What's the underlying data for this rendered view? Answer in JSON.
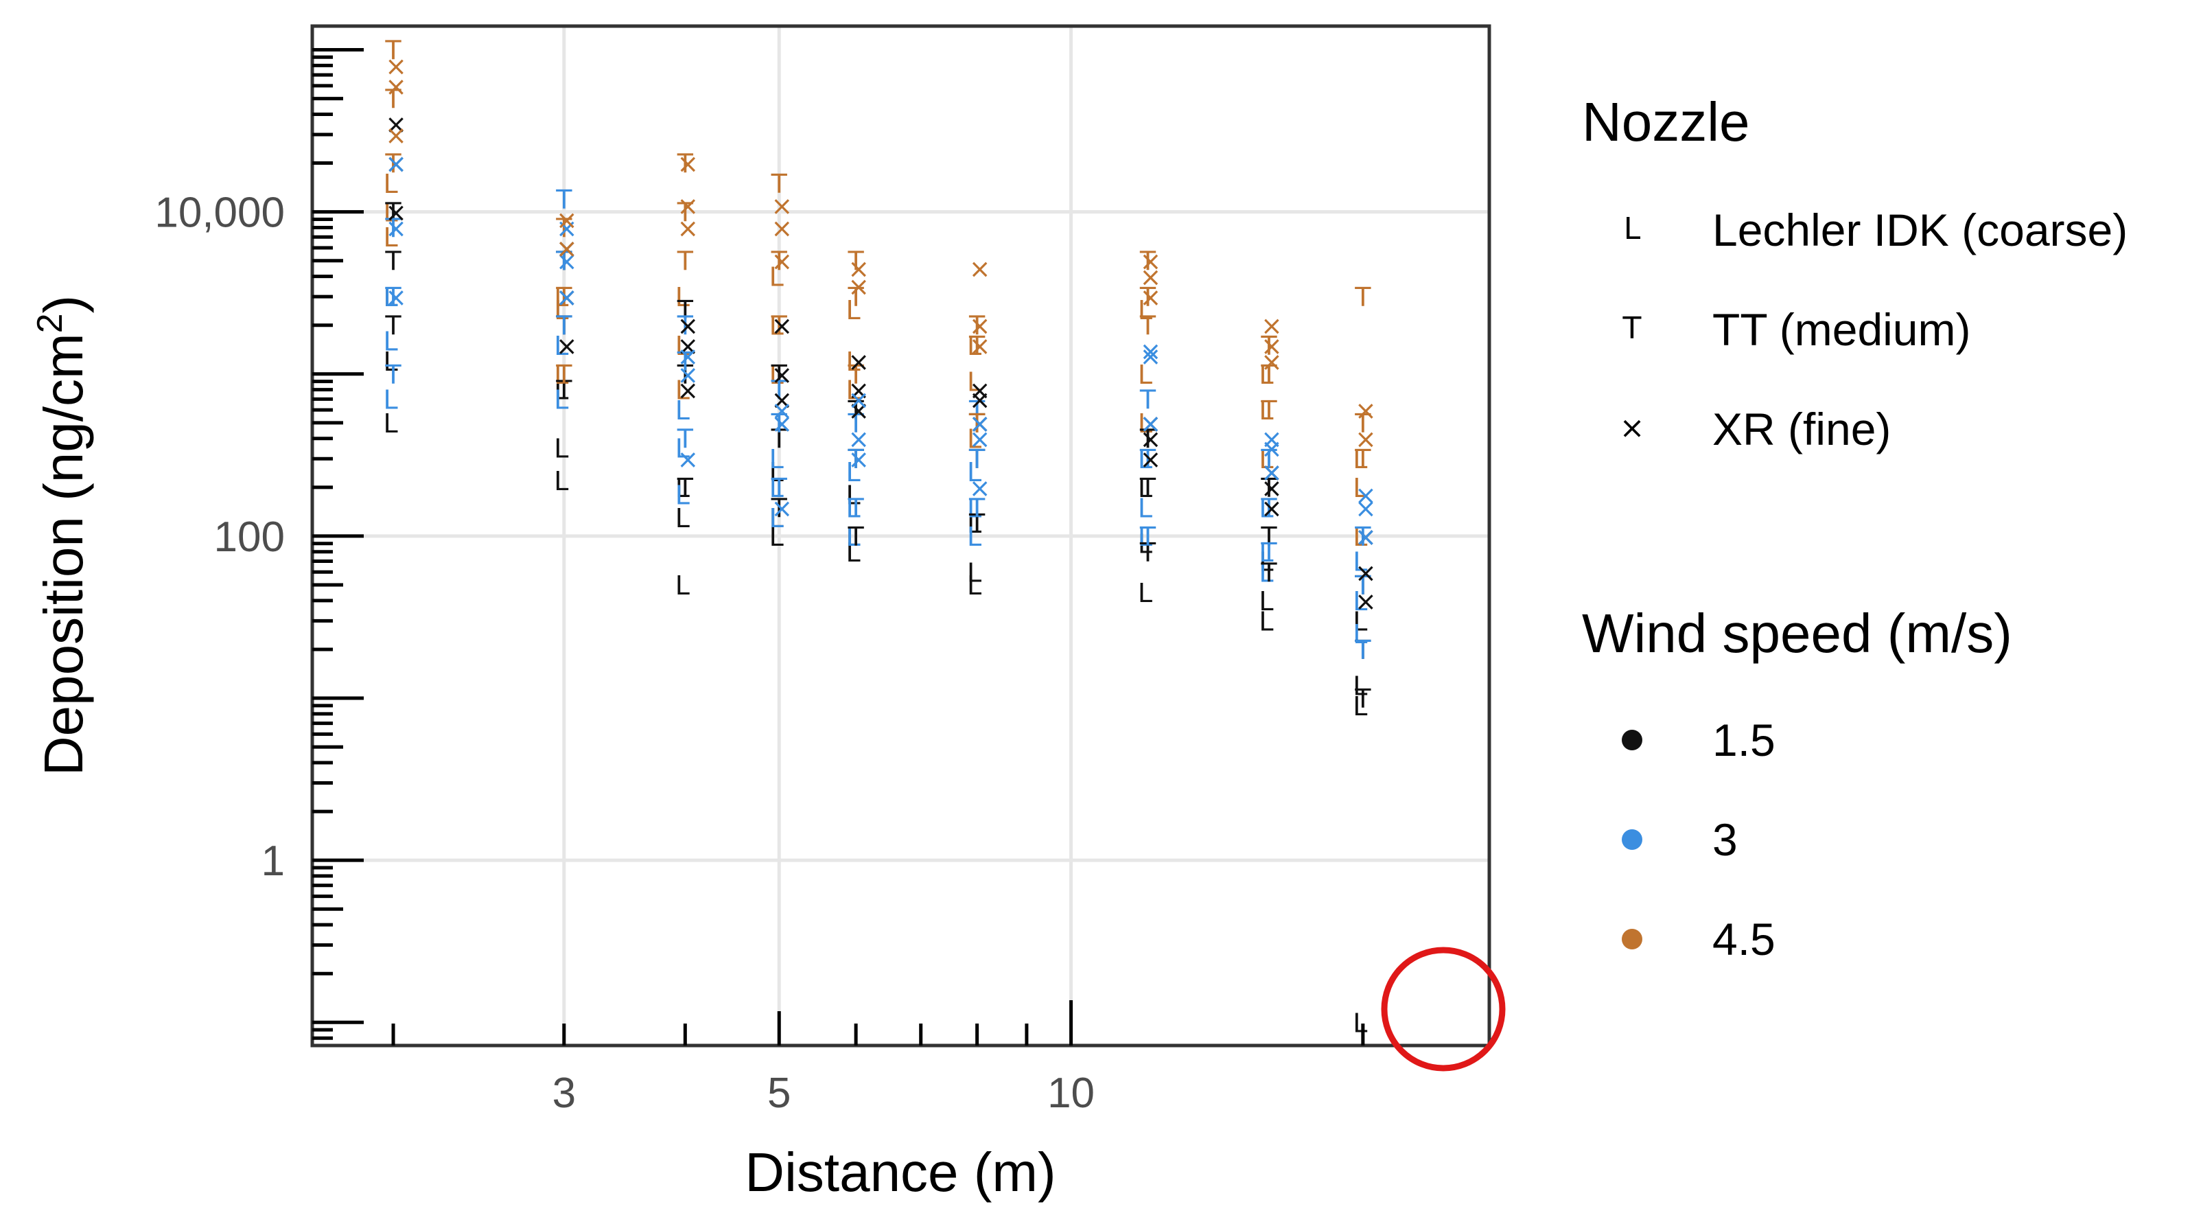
{
  "chart_data": {
    "type": "scatter",
    "xlabel": "Distance (m)",
    "ylabel_main": "Deposition (ng/cm",
    "ylabel_sup": "2",
    "ylabel_end": ")",
    "x_scale": "log",
    "y_scale": "log",
    "xlim": [
      1.65,
      27
    ],
    "ylim": [
      0.072,
      140000
    ],
    "x_ticks": [
      {
        "value": 3,
        "label": "3"
      },
      {
        "value": 5,
        "label": "5"
      },
      {
        "value": 10,
        "label": "10"
      }
    ],
    "y_ticks": [
      {
        "value": 1,
        "label": "1"
      },
      {
        "value": 100,
        "label": "100"
      },
      {
        "value": 10000,
        "label": "10,000"
      }
    ],
    "grid": true,
    "legend_position": "right",
    "legend": {
      "shape_title": "Nozzle",
      "shapes": [
        {
          "symbol": "L",
          "label": "Lechler IDK  (coarse)"
        },
        {
          "symbol": "T",
          "label": "TT (medium)"
        },
        {
          "symbol": "×",
          "label": "XR (fine)"
        }
      ],
      "color_title": "Wind speed (m/s)",
      "colors": [
        {
          "label": "1.5",
          "color": "#111111"
        },
        {
          "label": "3",
          "color": "#3b8ee0"
        },
        {
          "label": "4.5",
          "color": "#c0742f"
        }
      ]
    },
    "distances": [
      2,
      3,
      4,
      5,
      6,
      8,
      12,
      16,
      20
    ],
    "series": [
      {
        "nozzle": "Lechler IDK  (coarse)",
        "symbol": "L",
        "wind": "1.5",
        "color": "#111111",
        "points": [
          [
            2,
            500
          ],
          [
            2,
            1200
          ],
          [
            2,
            3000
          ],
          [
            3,
            220
          ],
          [
            3,
            350
          ],
          [
            3,
            800
          ],
          [
            4,
            50
          ],
          [
            4,
            130
          ],
          [
            4,
            200
          ],
          [
            5,
            100
          ],
          [
            5,
            130
          ],
          [
            5,
            250
          ],
          [
            6,
            80
          ],
          [
            6,
            100
          ],
          [
            6,
            180
          ],
          [
            8,
            50
          ],
          [
            8,
            60
          ],
          [
            8,
            120
          ],
          [
            12,
            45
          ],
          [
            12,
            90
          ],
          [
            12,
            200
          ],
          [
            16,
            30
          ],
          [
            16,
            40
          ],
          [
            16,
            70
          ],
          [
            20,
            9
          ],
          [
            20,
            12
          ],
          [
            20,
            30
          ],
          [
            20,
            0.1
          ]
        ]
      },
      {
        "nozzle": "Lechler IDK  (coarse)",
        "symbol": "L",
        "wind": "3",
        "color": "#3b8ee0",
        "points": [
          [
            2,
            700
          ],
          [
            2,
            1600
          ],
          [
            2,
            3000
          ],
          [
            3,
            700
          ],
          [
            3,
            1500
          ],
          [
            3,
            2500
          ],
          [
            4,
            180
          ],
          [
            4,
            350
          ],
          [
            4,
            600
          ],
          [
            5,
            130
          ],
          [
            5,
            200
          ],
          [
            5,
            300
          ],
          [
            6,
            100
          ],
          [
            6,
            150
          ],
          [
            6,
            250
          ],
          [
            8,
            100
          ],
          [
            8,
            150
          ],
          [
            8,
            250
          ],
          [
            12,
            100
          ],
          [
            12,
            150
          ],
          [
            12,
            300
          ],
          [
            16,
            60
          ],
          [
            16,
            80
          ],
          [
            16,
            150
          ],
          [
            20,
            25
          ],
          [
            20,
            40
          ],
          [
            20,
            70
          ]
        ]
      },
      {
        "nozzle": "Lechler IDK  (coarse)",
        "symbol": "L",
        "wind": "4.5",
        "color": "#c0742f",
        "points": [
          [
            2,
            7000
          ],
          [
            2,
            10000
          ],
          [
            2,
            15000
          ],
          [
            3,
            1000
          ],
          [
            3,
            2500
          ],
          [
            3,
            3000
          ],
          [
            4,
            800
          ],
          [
            4,
            1500
          ],
          [
            4,
            3000
          ],
          [
            5,
            1000
          ],
          [
            5,
            2000
          ],
          [
            5,
            4000
          ],
          [
            6,
            800
          ],
          [
            6,
            1200
          ],
          [
            6,
            2500
          ],
          [
            8,
            400
          ],
          [
            8,
            900
          ],
          [
            8,
            1500
          ],
          [
            12,
            500
          ],
          [
            12,
            1000
          ],
          [
            12,
            2500
          ],
          [
            16,
            300
          ],
          [
            16,
            600
          ],
          [
            16,
            1000
          ],
          [
            20,
            100
          ],
          [
            20,
            200
          ],
          [
            20,
            300
          ]
        ]
      },
      {
        "nozzle": "TT (medium)",
        "symbol": "T",
        "wind": "1.5",
        "color": "#111111",
        "points": [
          [
            2,
            2000
          ],
          [
            2,
            5000
          ],
          [
            2,
            10000
          ],
          [
            3,
            800
          ],
          [
            3,
            2000
          ],
          [
            3,
            5000
          ],
          [
            4,
            200
          ],
          [
            4,
            1000
          ],
          [
            4,
            2500
          ],
          [
            5,
            150
          ],
          [
            5,
            400
          ],
          [
            5,
            1000
          ],
          [
            6,
            100
          ],
          [
            6,
            300
          ],
          [
            6,
            600
          ],
          [
            8,
            120
          ],
          [
            8,
            300
          ],
          [
            8,
            500
          ],
          [
            12,
            80
          ],
          [
            12,
            200
          ],
          [
            12,
            400
          ],
          [
            16,
            60
          ],
          [
            16,
            100
          ],
          [
            16,
            200
          ],
          [
            20,
            10
          ],
          [
            20,
            20
          ],
          [
            20,
            50
          ]
        ]
      },
      {
        "nozzle": "TT (medium)",
        "symbol": "T",
        "wind": "3",
        "color": "#3b8ee0",
        "points": [
          [
            2,
            1000
          ],
          [
            2,
            3000
          ],
          [
            2,
            8000
          ],
          [
            3,
            2000
          ],
          [
            3,
            5000
          ],
          [
            3,
            12000
          ],
          [
            4,
            400
          ],
          [
            4,
            1200
          ],
          [
            4,
            2000
          ],
          [
            5,
            200
          ],
          [
            5,
            500
          ],
          [
            5,
            800
          ],
          [
            6,
            150
          ],
          [
            6,
            300
          ],
          [
            6,
            500
          ],
          [
            8,
            150
          ],
          [
            8,
            300
          ],
          [
            8,
            600
          ],
          [
            12,
            100
          ],
          [
            12,
            300
          ],
          [
            12,
            700
          ],
          [
            16,
            80
          ],
          [
            16,
            150
          ],
          [
            16,
            300
          ],
          [
            20,
            20
          ],
          [
            20,
            50
          ],
          [
            20,
            100
          ]
        ]
      },
      {
        "nozzle": "TT (medium)",
        "symbol": "T",
        "wind": "4.5",
        "color": "#c0742f",
        "points": [
          [
            2,
            20000
          ],
          [
            2,
            50000
          ],
          [
            2,
            100000
          ],
          [
            3,
            1000
          ],
          [
            3,
            3000
          ],
          [
            3,
            8000
          ],
          [
            4,
            5000
          ],
          [
            4,
            10000
          ],
          [
            4,
            20000
          ],
          [
            5,
            2000
          ],
          [
            5,
            5000
          ],
          [
            5,
            15000
          ],
          [
            6,
            1000
          ],
          [
            6,
            3000
          ],
          [
            6,
            5000
          ],
          [
            8,
            500
          ],
          [
            8,
            1500
          ],
          [
            8,
            2000
          ],
          [
            12,
            2000
          ],
          [
            12,
            3000
          ],
          [
            12,
            5000
          ],
          [
            16,
            600
          ],
          [
            16,
            1000
          ],
          [
            16,
            1500
          ],
          [
            20,
            300
          ],
          [
            20,
            500
          ],
          [
            20,
            3000
          ]
        ]
      },
      {
        "nozzle": "XR (fine)",
        "symbol": "×",
        "wind": "1.5",
        "color": "#111111",
        "points": [
          [
            2,
            10000
          ],
          [
            2,
            20000
          ],
          [
            2,
            35000
          ],
          [
            3,
            1500
          ],
          [
            3,
            3000
          ],
          [
            3,
            6000
          ],
          [
            4,
            800
          ],
          [
            4,
            1500
          ],
          [
            4,
            2000
          ],
          [
            5,
            700
          ],
          [
            5,
            1000
          ],
          [
            5,
            2000
          ],
          [
            6,
            600
          ],
          [
            6,
            800
          ],
          [
            6,
            1200
          ],
          [
            8,
            500
          ],
          [
            8,
            700
          ],
          [
            8,
            800
          ],
          [
            12,
            300
          ],
          [
            12,
            400
          ],
          [
            12,
            500
          ],
          [
            16,
            150
          ],
          [
            16,
            200
          ],
          [
            16,
            250
          ],
          [
            20,
            40
          ],
          [
            20,
            60
          ],
          [
            20,
            100
          ]
        ]
      },
      {
        "nozzle": "XR (fine)",
        "symbol": "×",
        "wind": "3",
        "color": "#3b8ee0",
        "points": [
          [
            2,
            3000
          ],
          [
            2,
            8000
          ],
          [
            2,
            20000
          ],
          [
            3,
            3000
          ],
          [
            3,
            5000
          ],
          [
            3,
            8000
          ],
          [
            4,
            300
          ],
          [
            4,
            1000
          ],
          [
            4,
            1300
          ],
          [
            5,
            150
          ],
          [
            5,
            500
          ],
          [
            5,
            600
          ],
          [
            6,
            300
          ],
          [
            6,
            400
          ],
          [
            6,
            700
          ],
          [
            8,
            200
          ],
          [
            8,
            400
          ],
          [
            8,
            500
          ],
          [
            12,
            500
          ],
          [
            12,
            1300
          ],
          [
            12,
            1400
          ],
          [
            16,
            250
          ],
          [
            16,
            350
          ],
          [
            16,
            400
          ],
          [
            20,
            100
          ],
          [
            20,
            150
          ],
          [
            20,
            180
          ]
        ]
      },
      {
        "nozzle": "XR (fine)",
        "symbol": "×",
        "wind": "4.5",
        "color": "#c0742f",
        "points": [
          [
            2,
            30000
          ],
          [
            2,
            60000
          ],
          [
            2,
            80000
          ],
          [
            3,
            6000
          ],
          [
            3,
            9000
          ],
          [
            4,
            8000
          ],
          [
            4,
            11000
          ],
          [
            4,
            20000
          ],
          [
            5,
            5000
          ],
          [
            5,
            8000
          ],
          [
            5,
            11000
          ],
          [
            6,
            3500
          ],
          [
            6,
            4500
          ],
          [
            8,
            1500
          ],
          [
            8,
            2000
          ],
          [
            8,
            4500
          ],
          [
            12,
            3000
          ],
          [
            12,
            4000
          ],
          [
            12,
            5000
          ],
          [
            16,
            1200
          ],
          [
            16,
            1500
          ],
          [
            16,
            2000
          ],
          [
            20,
            400
          ],
          [
            20,
            600
          ]
        ]
      }
    ]
  }
}
